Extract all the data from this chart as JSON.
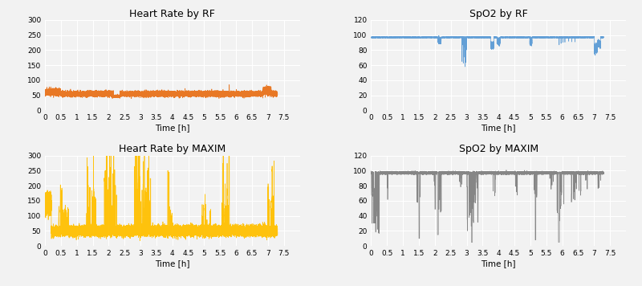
{
  "titles": [
    "Heart Rate by RF",
    "SpO2 by RF",
    "Heart Rate by MAXIM",
    "SpO2 by MAXIM"
  ],
  "colors": [
    "#E8711A",
    "#5B9BD5",
    "#FFC000",
    "#808080"
  ],
  "xlim": [
    0,
    8
  ],
  "xticks": [
    0,
    0.5,
    1,
    1.5,
    2,
    2.5,
    3,
    3.5,
    4,
    4.5,
    5,
    5.5,
    6,
    6.5,
    7,
    7.5
  ],
  "xlabel": "Time [h]",
  "hr_rf_ylim": [
    0,
    300
  ],
  "hr_rf_yticks": [
    0,
    50,
    100,
    150,
    200,
    250,
    300
  ],
  "spo2_rf_ylim": [
    0,
    120
  ],
  "spo2_rf_yticks": [
    0,
    20,
    40,
    60,
    80,
    100,
    120
  ],
  "hr_maxim_ylim": [
    0,
    300
  ],
  "hr_maxim_yticks": [
    0,
    50,
    100,
    150,
    200,
    250,
    300
  ],
  "spo2_maxim_ylim": [
    0,
    120
  ],
  "spo2_maxim_yticks": [
    0,
    20,
    40,
    60,
    80,
    100,
    120
  ],
  "figsize": [
    8.0,
    3.56
  ],
  "dpi": 100,
  "background_color": "#F2F2F2",
  "grid_color": "#FFFFFF",
  "linewidth": 0.5
}
